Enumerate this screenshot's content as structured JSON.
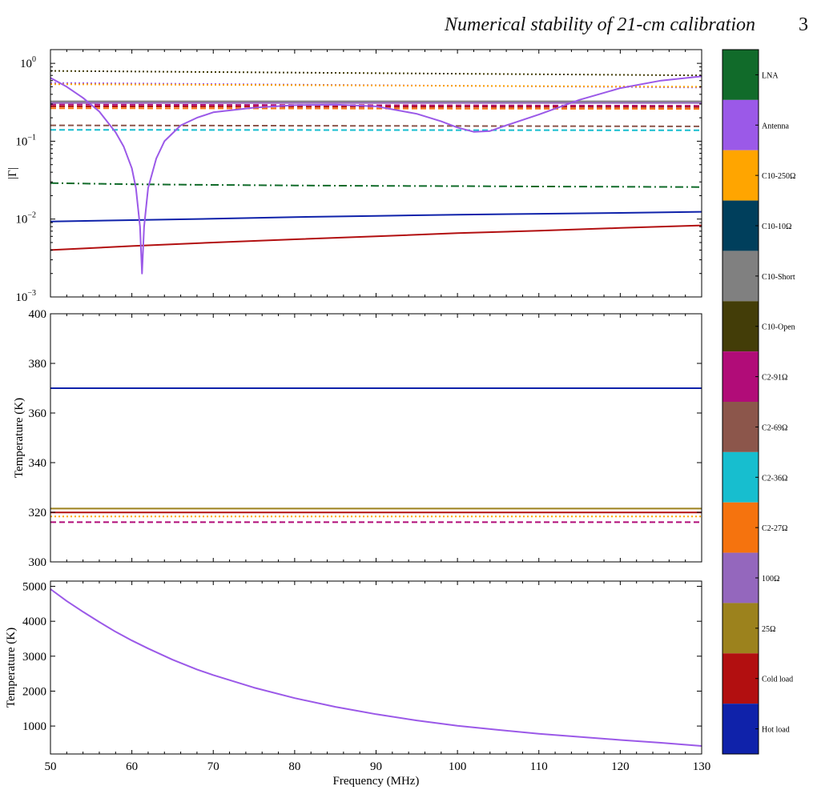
{
  "header": {
    "title": "Numerical stability of 21-cm calibration",
    "page_number": "3"
  },
  "colors": {
    "LNA": "#116b2a",
    "Antenna": "#9b59e8",
    "C10-250Ω": "#ffa500",
    "C10-10Ω": "#003f5c",
    "C10-Short": "#808080",
    "C10-Open": "#433d08",
    "C2-91Ω": "#b10c78",
    "C2-69Ω": "#8c564b",
    "C2-36Ω": "#17becf",
    "C2-27Ω": "#f5730e",
    "100Ω": "#9467bd",
    "25Ω": "#9c821d",
    "Cold load": "#b20f10",
    "Hot load": "#0f22aa"
  },
  "chart_data": [
    {
      "type": "line",
      "ylabel": "|Γ|",
      "yscale": "log",
      "ylim": [
        0.001,
        1.5
      ],
      "xlim": [
        50,
        130
      ],
      "y_ticks": [
        0.001,
        0.01,
        0.1,
        1
      ],
      "y_tick_labels": [
        [
          "10",
          "−3"
        ],
        [
          "10",
          "−2"
        ],
        [
          "10",
          "−1"
        ],
        [
          "10",
          "0"
        ]
      ],
      "series": [
        {
          "key": "C10-Open",
          "style": "dotted",
          "x": [
            50,
            130
          ],
          "y": [
            0.8,
            0.7
          ]
        },
        {
          "key": "Antenna",
          "style": "dotted",
          "x": [
            50,
            130
          ],
          "y": [
            0.56,
            0.49
          ]
        },
        {
          "key": "C10-250Ω",
          "style": "dotted",
          "x": [
            50,
            130
          ],
          "y": [
            0.54,
            0.5
          ]
        },
        {
          "key": "C10-Short",
          "style": "solid",
          "x": [
            50,
            130
          ],
          "y": [
            0.325,
            0.325
          ]
        },
        {
          "key": "100Ω",
          "style": "solid",
          "x": [
            50,
            130
          ],
          "y": [
            0.31,
            0.31
          ]
        },
        {
          "key": "C2-91Ω",
          "style": "dashed",
          "x": [
            50,
            130
          ],
          "y": [
            0.295,
            0.285
          ]
        },
        {
          "key": "Cold load",
          "style": "dashed",
          "x": [
            50,
            130
          ],
          "y": [
            0.28,
            0.275
          ]
        },
        {
          "key": "C2-27Ω",
          "style": "dashed",
          "x": [
            50,
            130
          ],
          "y": [
            0.265,
            0.26
          ]
        },
        {
          "key": "C2-69Ω",
          "style": "dashed",
          "x": [
            50,
            130
          ],
          "y": [
            0.16,
            0.155
          ]
        },
        {
          "key": "C2-36Ω",
          "style": "dashed",
          "x": [
            50,
            130
          ],
          "y": [
            0.14,
            0.138
          ]
        },
        {
          "key": "LNA",
          "style": "dashdot",
          "x": [
            50,
            60,
            70,
            80,
            90,
            100,
            110,
            120,
            130
          ],
          "y": [
            0.029,
            0.028,
            0.0275,
            0.027,
            0.0267,
            0.0265,
            0.0262,
            0.026,
            0.0258
          ]
        },
        {
          "key": "Hot load",
          "style": "solid",
          "x": [
            50,
            60,
            70,
            80,
            90,
            100,
            110,
            120,
            130
          ],
          "y": [
            0.0093,
            0.0097,
            0.0101,
            0.0106,
            0.011,
            0.0114,
            0.0117,
            0.012,
            0.0124
          ]
        },
        {
          "key": "Cold load",
          "style": "solid",
          "x": [
            50,
            60,
            70,
            80,
            90,
            100,
            110,
            120,
            130
          ],
          "y": [
            0.004,
            0.0045,
            0.005,
            0.0055,
            0.006,
            0.0066,
            0.0071,
            0.0077,
            0.0083
          ]
        },
        {
          "key": "Antenna",
          "style": "solid",
          "x": [
            50,
            52,
            54,
            56,
            58,
            59,
            60,
            60.5,
            61,
            61.25,
            61.5,
            62,
            63,
            64,
            66,
            68,
            70,
            75,
            80,
            85,
            90,
            95,
            98,
            100,
            102,
            104,
            106,
            110,
            115,
            120,
            125,
            130
          ],
          "y": [
            0.65,
            0.5,
            0.36,
            0.24,
            0.13,
            0.085,
            0.045,
            0.025,
            0.008,
            0.002,
            0.008,
            0.025,
            0.06,
            0.1,
            0.16,
            0.2,
            0.235,
            0.27,
            0.29,
            0.295,
            0.28,
            0.225,
            0.18,
            0.15,
            0.132,
            0.135,
            0.16,
            0.22,
            0.34,
            0.48,
            0.6,
            0.68
          ]
        }
      ]
    },
    {
      "type": "line",
      "ylabel": "Temperature (K)",
      "ylim": [
        300,
        400
      ],
      "xlim": [
        50,
        130
      ],
      "y_ticks": [
        300,
        320,
        340,
        360,
        380,
        400
      ],
      "series": [
        {
          "key": "Hot load",
          "style": "solid",
          "x": [
            50,
            130
          ],
          "y": [
            370,
            370
          ]
        },
        {
          "key": "25Ω",
          "style": "solid",
          "x": [
            50,
            130
          ],
          "y": [
            321.5,
            321.5
          ]
        },
        {
          "key": "Cold load",
          "style": "solid",
          "x": [
            50,
            130
          ],
          "y": [
            319.9,
            319.9
          ]
        },
        {
          "key": "C10-250Ω",
          "style": "dotted",
          "x": [
            50,
            130
          ],
          "y": [
            318.3,
            318.3
          ]
        },
        {
          "key": "C2-91Ω",
          "style": "dashed",
          "x": [
            50,
            130
          ],
          "y": [
            316,
            316
          ]
        }
      ]
    },
    {
      "type": "line",
      "ylabel": "Temperature (K)",
      "xlabel": "Frequency (MHz)",
      "ylim": [
        200,
        5150
      ],
      "xlim": [
        50,
        130
      ],
      "y_ticks": [
        1000,
        2000,
        3000,
        4000,
        5000
      ],
      "x_ticks": [
        50,
        60,
        70,
        80,
        90,
        100,
        110,
        120,
        130
      ],
      "series": [
        {
          "key": "Antenna",
          "style": "solid",
          "x": [
            50,
            52,
            54,
            56,
            58,
            60,
            62,
            65,
            68,
            70,
            75,
            80,
            85,
            90,
            95,
            100,
            105,
            110,
            115,
            120,
            125,
            130
          ],
          "y": [
            4920,
            4580,
            4270,
            3980,
            3700,
            3450,
            3220,
            2900,
            2620,
            2460,
            2100,
            1800,
            1550,
            1340,
            1160,
            1010,
            890,
            780,
            690,
            600,
            520,
            430
          ]
        }
      ]
    }
  ],
  "colorbar": {
    "labels": [
      "LNA",
      "Antenna",
      "C10-250Ω",
      "C10-10Ω",
      "C10-Short",
      "C10-Open",
      "C2-91Ω",
      "C2-69Ω",
      "C2-36Ω",
      "C2-27Ω",
      "100Ω",
      "25Ω",
      "Cold load",
      "Hot load"
    ]
  }
}
